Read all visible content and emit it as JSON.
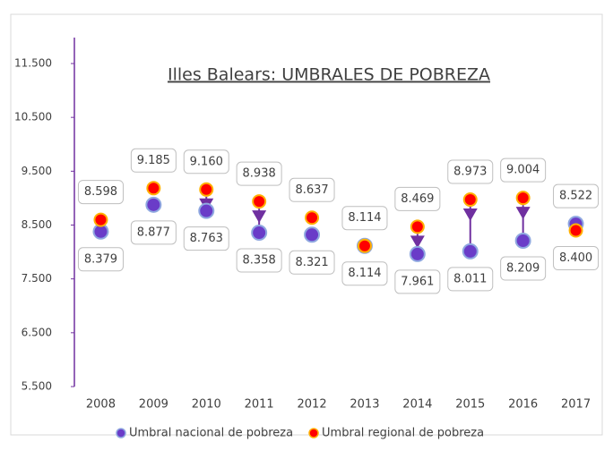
{
  "chart_data": {
    "type": "dot-arrow",
    "title": "Illes Balears: UMBRALES DE POBREZA",
    "categories": [
      "2008",
      "2009",
      "2010",
      "2011",
      "2012",
      "2013",
      "2014",
      "2015",
      "2016",
      "2017"
    ],
    "series": [
      {
        "name": "Umbral nacional de pobreza",
        "color": "#6a3cc8",
        "values": [
          8379,
          8877,
          8763,
          8358,
          8321,
          8114,
          7961,
          8011,
          8209,
          8522
        ],
        "value_labels": [
          "8.379",
          "8.877",
          "8.763",
          "8.358",
          "8.321",
          "8.114",
          "7.961",
          "8.011",
          "8.209",
          "8.522"
        ]
      },
      {
        "name": "Umbral regional de pobreza",
        "color": "#ff0000",
        "values": [
          8598,
          9185,
          9160,
          8938,
          8637,
          8114,
          8469,
          8973,
          9004,
          8400
        ],
        "value_labels": [
          "8.598",
          "9.185",
          "9.160",
          "8.938",
          "8.637",
          "8.114",
          "8.469",
          "8.973",
          "9.004",
          "8.400"
        ]
      }
    ],
    "arrow_color": "#7030a0",
    "ylim": [
      5500,
      11500
    ],
    "yticks": [
      {
        "value": 5500,
        "label": "5.500"
      },
      {
        "value": 6500,
        "label": "6.500"
      },
      {
        "value": 7500,
        "label": "7.500"
      },
      {
        "value": 8500,
        "label": "8.500"
      },
      {
        "value": 9500,
        "label": "9.500"
      },
      {
        "value": 10500,
        "label": "10.500"
      },
      {
        "value": 11500,
        "label": "11.500"
      }
    ],
    "legend": "bottom"
  }
}
